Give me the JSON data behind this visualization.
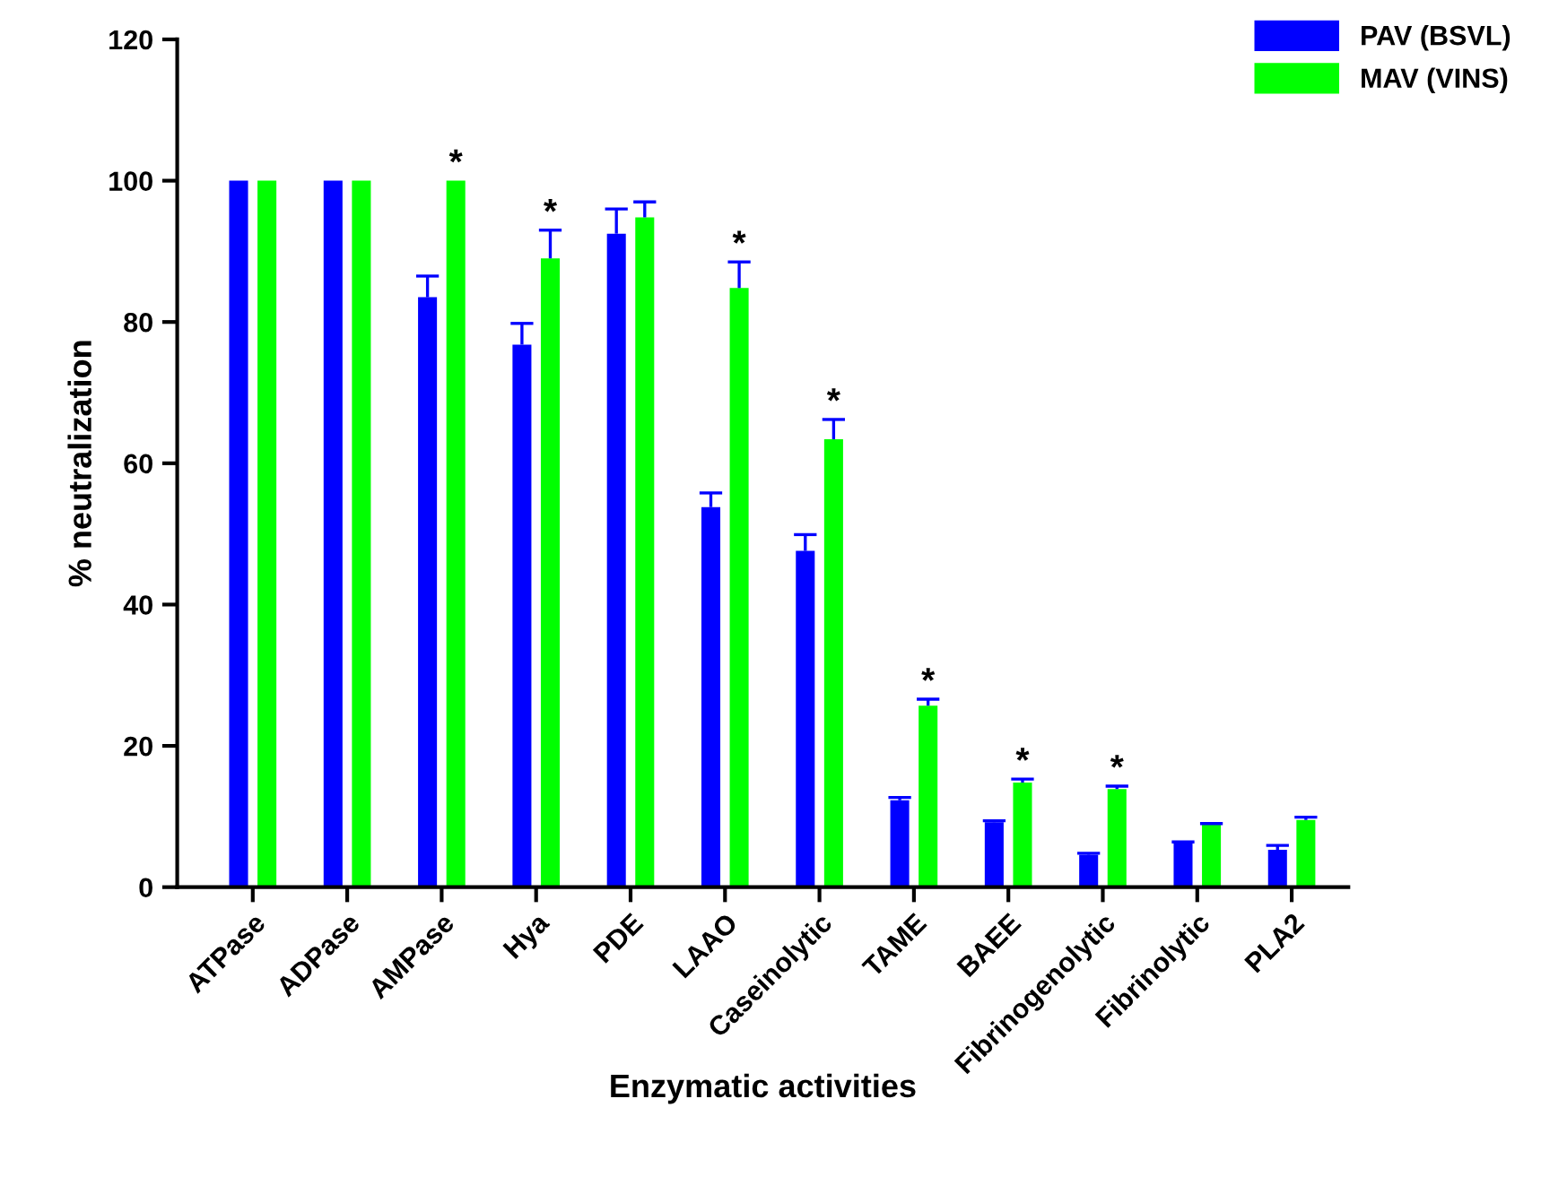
{
  "chart_data": {
    "type": "bar",
    "xlabel": "Enzymatic activities",
    "ylabel": "% neutralization",
    "categories": [
      "ATPase",
      "ADPase",
      "AMPase",
      "Hya",
      "PDE",
      "LAAO",
      "Caseinolytic",
      "TAME",
      "BAEE",
      "Fibrinogenolytic",
      "Fibrinolytic",
      "PLA2"
    ],
    "series": [
      {
        "name": "PAV (BSVL)",
        "color": "#0000ff",
        "values": [
          100,
          100,
          83.5,
          76.8,
          92.5,
          53.8,
          47.6,
          12.3,
          9.2,
          4.6,
          6.2,
          5.3
        ],
        "errors": [
          null,
          null,
          [
            83.5,
            86.5
          ],
          [
            76.8,
            79.8
          ],
          [
            92.5,
            96
          ],
          [
            53.8,
            55.8
          ],
          [
            47.6,
            49.9
          ],
          [
            12.3,
            12.7
          ],
          [
            9.2,
            9.4
          ],
          [
            4.6,
            4.8
          ],
          [
            6.2,
            6.4
          ],
          [
            5.3,
            5.9
          ]
        ]
      },
      {
        "name": "MAV (VINS)",
        "color": "#00ff00",
        "values": [
          100,
          100,
          100,
          89,
          94.8,
          84.8,
          63.4,
          25.7,
          14.8,
          13.9,
          8.9,
          9.5
        ],
        "errors": [
          null,
          null,
          null,
          [
            89,
            93
          ],
          [
            94.8,
            97
          ],
          [
            84.8,
            88.5
          ],
          [
            63.4,
            66.2
          ],
          [
            25.7,
            26.6
          ],
          [
            14.8,
            15.3
          ],
          [
            13.9,
            14.3
          ],
          [
            8.9,
            9.0
          ],
          [
            9.5,
            9.9
          ]
        ]
      }
    ],
    "annotations": [
      {
        "text": "*",
        "x": "AMPase",
        "y": 100
      },
      {
        "text": "*",
        "x": "Hya",
        "y": 93
      },
      {
        "text": "*",
        "x": "LAAO",
        "y": 88.5
      },
      {
        "text": "*",
        "x": "Caseinolytic",
        "y": 66.2
      },
      {
        "text": "*",
        "x": "TAME",
        "y": 26.6
      },
      {
        "text": "*",
        "x": "BAEE",
        "y": 15.3
      },
      {
        "text": "*",
        "x": "Fibrinogenolytic",
        "y": 14.3
      }
    ],
    "ylim": [
      0,
      120
    ],
    "yticks": [
      0,
      20,
      40,
      60,
      80,
      100,
      120
    ],
    "grid": false,
    "legend": "top right"
  }
}
